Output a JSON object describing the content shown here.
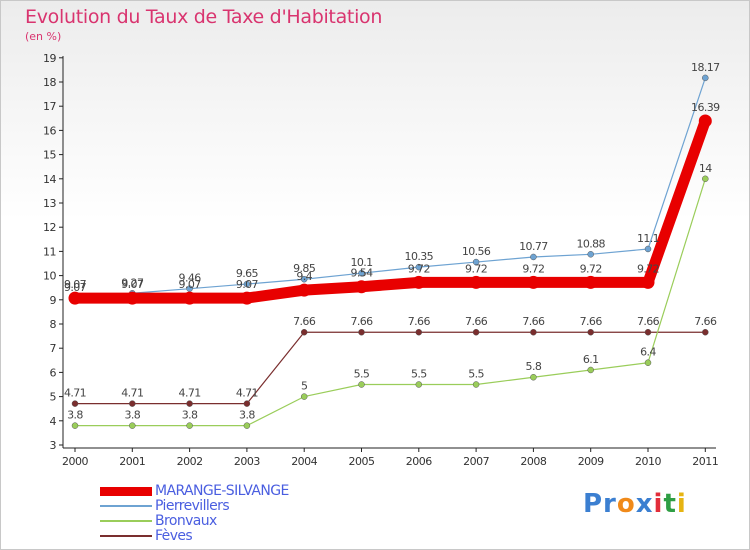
{
  "chart_data": {
    "type": "line",
    "title": "Evolution du Taux de Taxe d'Habitation",
    "subtitle": "(en %)",
    "categories": [
      "2000",
      "2001",
      "2002",
      "2003",
      "2004",
      "2005",
      "2006",
      "2007",
      "2008",
      "2009",
      "2010",
      "2011"
    ],
    "yticks": [
      "3",
      "4",
      "5",
      "6",
      "7",
      "8",
      "9",
      "10",
      "11",
      "12",
      "13",
      "14",
      "15",
      "16",
      "17",
      "18",
      "19"
    ],
    "ylim": [
      3,
      19
    ],
    "grid": false,
    "series": [
      {
        "name": "Pierrevillers",
        "color": "#6ea3d2",
        "values": [
          9.07,
          9.27,
          9.46,
          9.65,
          9.85,
          10.1,
          10.35,
          10.56,
          10.77,
          10.88,
          11.1,
          18.17
        ],
        "labels": [
          "9.07",
          "9.27",
          "9.46",
          "9.65",
          "9.85",
          "10.1",
          "10.35",
          "10.56",
          "10.77",
          "10.88",
          "11.1",
          "18.17"
        ]
      },
      {
        "name": "MARANGE-SILVANGE",
        "color": "#e80000",
        "values": [
          9.07,
          9.07,
          9.07,
          9.07,
          9.4,
          9.54,
          9.72,
          9.72,
          9.72,
          9.72,
          9.72,
          16.39
        ],
        "labels": [
          "9.07",
          "9.07",
          "9.07",
          "9.07",
          "9.4",
          "9.54",
          "9.72",
          "9.72",
          "9.72",
          "9.72",
          "9.72",
          "16.39"
        ]
      },
      {
        "name": "Bronvaux",
        "color": "#9acd5a",
        "values": [
          3.8,
          3.8,
          3.8,
          3.8,
          5,
          5.5,
          5.5,
          5.5,
          5.8,
          6.1,
          6.4,
          14
        ],
        "labels": [
          "3.8",
          "3.8",
          "3.8",
          "3.8",
          "5",
          "5.5",
          "5.5",
          "5.5",
          "5.8",
          "6.1",
          "6.4",
          "14"
        ]
      },
      {
        "name": "Fèves",
        "color": "#7a2e2e",
        "values": [
          4.71,
          4.71,
          4.71,
          4.71,
          7.66,
          7.66,
          7.66,
          7.66,
          7.66,
          7.66,
          7.66,
          7.66
        ],
        "labels": [
          "4.71",
          "4.71",
          "4.71",
          "4.71",
          "7.66",
          "7.66",
          "7.66",
          "7.66",
          "7.66",
          "7.66",
          "7.66",
          "7.66"
        ]
      }
    ],
    "legend": {
      "position": "bottom-left",
      "entries": [
        {
          "name": "MARANGE-SILVANGE",
          "color": "#e80000",
          "text_color": "#4a5ee0"
        },
        {
          "name": "Pierrevillers",
          "color": "#6ea3d2",
          "text_color": "#4a5ee0"
        },
        {
          "name": "Bronvaux",
          "color": "#9acd5a",
          "text_color": "#4a5ee0"
        },
        {
          "name": "Fèves",
          "color": "#7a2e2e",
          "text_color": "#4a5ee0"
        }
      ]
    }
  },
  "branding": {
    "logo_parts": [
      "Pr",
      "o",
      "x",
      "i",
      "t",
      "i"
    ]
  }
}
